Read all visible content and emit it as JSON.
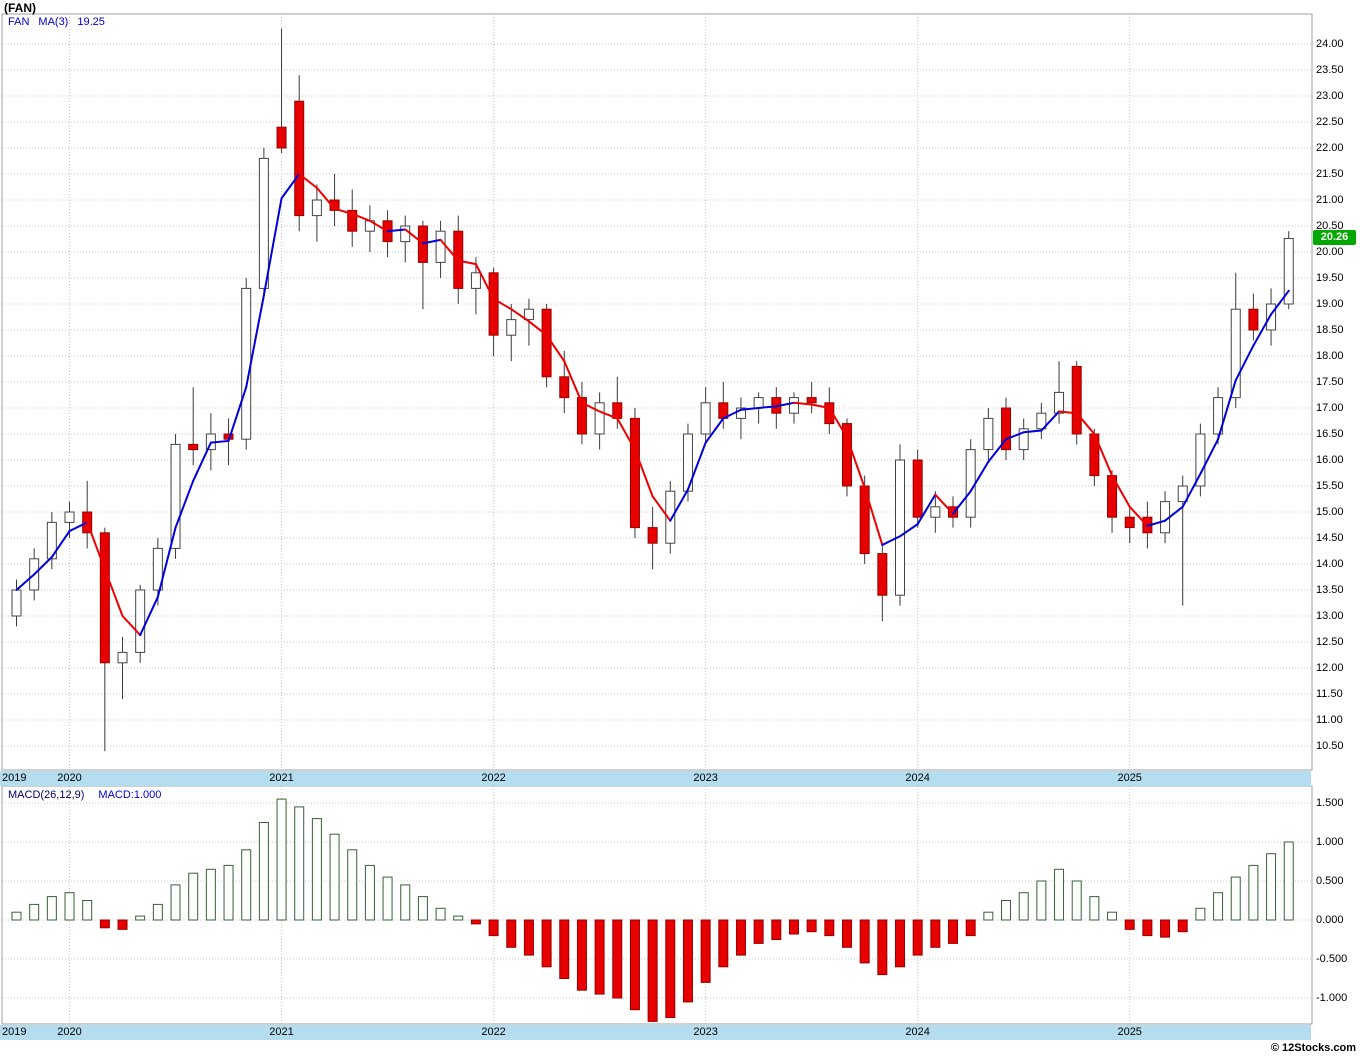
{
  "title": "(FAN)",
  "watermark": "© 12Stocks.com",
  "main_chart": {
    "legend": {
      "symbol": "FAN",
      "indicator": "MA(3)",
      "value": "19.25"
    },
    "last_price_badge": "20.26",
    "price_ticks": [
      "24.00",
      "23.50",
      "23.00",
      "22.50",
      "22.00",
      "21.50",
      "21.00",
      "20.50",
      "20.00",
      "19.50",
      "19.00",
      "18.50",
      "18.00",
      "17.50",
      "17.00",
      "16.50",
      "16.00",
      "15.50",
      "15.00",
      "14.50",
      "14.00",
      "13.50",
      "13.00",
      "12.50",
      "12.00",
      "11.50",
      "11.00",
      "10.50"
    ],
    "years": [
      {
        "label": "2019",
        "candle_index": null
      },
      {
        "label": "2020",
        "candle_index": 3
      },
      {
        "label": "2021",
        "candle_index": 15
      },
      {
        "label": "2022",
        "candle_index": 27
      },
      {
        "label": "2023",
        "candle_index": 39
      },
      {
        "label": "2024",
        "candle_index": 51
      },
      {
        "label": "2025",
        "candle_index": 63
      }
    ]
  },
  "macd_panel": {
    "legend_left": "MACD(26,12,9)",
    "legend_right": "MACD:1.000",
    "ticks": [
      "1.500",
      "1.000",
      "0.500",
      "0.000",
      "-0.500",
      "-1.000"
    ]
  },
  "chart_data": [
    {
      "type": "candlestick",
      "title": "FAN monthly candles with MA(3) overlay",
      "interval": "monthly",
      "start": "2019-10",
      "x_year_ticks": [
        "2019",
        "2020",
        "2021",
        "2022",
        "2023",
        "2024",
        "2025"
      ],
      "ylim": [
        10.5,
        24.0
      ],
      "y_tick_step": 0.5,
      "grid": true,
      "ma_period": 3,
      "ma_last": 19.25,
      "last_close": 20.26,
      "ohlc": [
        [
          13.0,
          13.7,
          12.8,
          13.5
        ],
        [
          13.5,
          14.3,
          13.3,
          14.1
        ],
        [
          14.1,
          15.0,
          13.9,
          14.8
        ],
        [
          14.8,
          15.2,
          14.5,
          15.0
        ],
        [
          15.0,
          15.6,
          14.3,
          14.6
        ],
        [
          14.6,
          14.7,
          10.4,
          12.1
        ],
        [
          12.1,
          12.6,
          11.4,
          12.3
        ],
        [
          12.3,
          13.6,
          12.1,
          13.5
        ],
        [
          13.5,
          14.5,
          13.2,
          14.3
        ],
        [
          14.3,
          16.5,
          14.1,
          16.3
        ],
        [
          16.3,
          17.4,
          15.9,
          16.2
        ],
        [
          16.2,
          16.9,
          15.8,
          16.5
        ],
        [
          16.5,
          16.8,
          15.9,
          16.4
        ],
        [
          16.4,
          19.5,
          16.2,
          19.3
        ],
        [
          19.3,
          22.0,
          19.1,
          21.8
        ],
        [
          22.4,
          24.3,
          21.9,
          22.0
        ],
        [
          22.9,
          23.4,
          20.4,
          20.7
        ],
        [
          20.7,
          21.3,
          20.2,
          21.0
        ],
        [
          21.0,
          21.5,
          20.5,
          20.8
        ],
        [
          20.8,
          21.2,
          20.1,
          20.4
        ],
        [
          20.4,
          20.9,
          20.0,
          20.6
        ],
        [
          20.6,
          20.8,
          19.9,
          20.2
        ],
        [
          20.2,
          20.7,
          19.8,
          20.5
        ],
        [
          20.5,
          20.6,
          18.9,
          19.8
        ],
        [
          19.8,
          20.6,
          19.5,
          20.4
        ],
        [
          20.4,
          20.7,
          19.0,
          19.3
        ],
        [
          19.3,
          19.9,
          18.8,
          19.6
        ],
        [
          19.6,
          19.7,
          18.0,
          18.4
        ],
        [
          18.4,
          19.0,
          17.9,
          18.7
        ],
        [
          18.7,
          19.1,
          18.2,
          18.9
        ],
        [
          18.9,
          19.0,
          17.4,
          17.6
        ],
        [
          17.6,
          18.1,
          16.9,
          17.2
        ],
        [
          17.2,
          17.5,
          16.3,
          16.5
        ],
        [
          16.5,
          17.3,
          16.2,
          17.1
        ],
        [
          17.1,
          17.6,
          16.6,
          16.8
        ],
        [
          16.8,
          17.0,
          14.5,
          14.7
        ],
        [
          14.7,
          15.1,
          13.9,
          14.4
        ],
        [
          14.4,
          15.6,
          14.2,
          15.4
        ],
        [
          15.4,
          16.7,
          15.2,
          16.5
        ],
        [
          16.5,
          17.4,
          16.3,
          17.1
        ],
        [
          17.1,
          17.5,
          16.6,
          16.8
        ],
        [
          16.8,
          17.2,
          16.4,
          17.0
        ],
        [
          17.0,
          17.3,
          16.7,
          17.2
        ],
        [
          17.2,
          17.4,
          16.6,
          16.9
        ],
        [
          16.9,
          17.3,
          16.7,
          17.2
        ],
        [
          17.2,
          17.5,
          16.9,
          17.1
        ],
        [
          17.1,
          17.4,
          16.5,
          16.7
        ],
        [
          16.7,
          16.8,
          15.3,
          15.5
        ],
        [
          15.5,
          15.7,
          14.0,
          14.2
        ],
        [
          14.2,
          14.4,
          12.9,
          13.4
        ],
        [
          13.4,
          16.3,
          13.2,
          16.0
        ],
        [
          16.0,
          16.2,
          14.7,
          14.9
        ],
        [
          14.9,
          15.4,
          14.6,
          15.1
        ],
        [
          15.1,
          15.3,
          14.7,
          14.9
        ],
        [
          14.9,
          16.4,
          14.7,
          16.2
        ],
        [
          16.2,
          17.0,
          16.0,
          16.8
        ],
        [
          17.0,
          17.2,
          16.0,
          16.2
        ],
        [
          16.2,
          16.8,
          16.0,
          16.6
        ],
        [
          16.6,
          17.1,
          16.4,
          16.9
        ],
        [
          16.9,
          17.9,
          16.7,
          17.3
        ],
        [
          17.8,
          17.9,
          16.3,
          16.5
        ],
        [
          16.5,
          16.6,
          15.5,
          15.7
        ],
        [
          15.7,
          15.8,
          14.6,
          14.9
        ],
        [
          14.9,
          15.1,
          14.4,
          14.7
        ],
        [
          14.9,
          15.2,
          14.3,
          14.6
        ],
        [
          14.6,
          15.4,
          14.4,
          15.2
        ],
        [
          15.2,
          15.7,
          13.2,
          15.5
        ],
        [
          15.5,
          16.7,
          15.3,
          16.5
        ],
        [
          16.5,
          17.4,
          16.3,
          17.2
        ],
        [
          17.2,
          19.6,
          17.0,
          18.9
        ],
        [
          18.9,
          19.2,
          18.3,
          18.5
        ],
        [
          18.5,
          19.3,
          18.2,
          19.0
        ],
        [
          19.0,
          20.4,
          18.9,
          20.26
        ]
      ]
    },
    {
      "type": "bar",
      "name": "MACD(26,12,9)",
      "last": 1.0,
      "ylim": [
        -1.5,
        1.75
      ],
      "tick_step": 0.5,
      "zero_line": true,
      "values": [
        0.1,
        0.2,
        0.3,
        0.35,
        0.25,
        -0.1,
        -0.12,
        0.05,
        0.2,
        0.45,
        0.6,
        0.65,
        0.7,
        0.9,
        1.25,
        1.55,
        1.45,
        1.3,
        1.1,
        0.9,
        0.7,
        0.55,
        0.45,
        0.3,
        0.15,
        0.05,
        -0.05,
        -0.2,
        -0.35,
        -0.45,
        -0.6,
        -0.75,
        -0.9,
        -0.95,
        -1.0,
        -1.15,
        -1.3,
        -1.25,
        -1.05,
        -0.8,
        -0.6,
        -0.45,
        -0.3,
        -0.25,
        -0.18,
        -0.15,
        -0.2,
        -0.35,
        -0.55,
        -0.7,
        -0.6,
        -0.45,
        -0.35,
        -0.3,
        -0.2,
        0.1,
        0.25,
        0.35,
        0.5,
        0.65,
        0.5,
        0.3,
        0.1,
        -0.12,
        -0.2,
        -0.22,
        -0.15,
        0.15,
        0.35,
        0.55,
        0.7,
        0.85,
        1.0
      ]
    }
  ],
  "colors": {
    "legend_text": "#0000cc",
    "macd_params_text": "#000066",
    "macd_value_text": "#0000cc",
    "grid": "#c9c9c9",
    "panel_border": "#a0a0a0",
    "band_bg": "#b5ddf0",
    "candle_up_fill": "#ffffff",
    "candle_up_stroke": "#444444",
    "candle_down_fill": "#e60000",
    "candle_down_stroke": "#990000",
    "wick": "#3a3a3a",
    "ma_up": "#0000dd",
    "ma_down": "#ee0000",
    "macd_pos_fill": "#fcfffc",
    "macd_pos_stroke": "#3a5f3a",
    "macd_neg_fill": "#e60000",
    "macd_neg_stroke": "#990000",
    "badge_bg": "#00a800",
    "badge_text": "#ffffff"
  }
}
